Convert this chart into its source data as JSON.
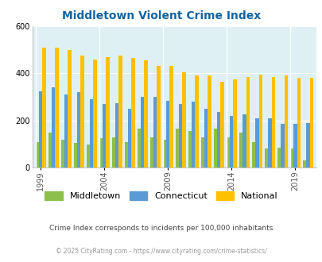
{
  "title": "Middletown Violent Crime Index",
  "years": [
    1999,
    2000,
    2001,
    2002,
    2003,
    2004,
    2005,
    2006,
    2007,
    2008,
    2009,
    2010,
    2011,
    2012,
    2013,
    2014,
    2015,
    2016,
    2017,
    2018,
    2019,
    2020
  ],
  "middletown": [
    110,
    150,
    120,
    105,
    100,
    125,
    130,
    110,
    165,
    130,
    120,
    165,
    155,
    130,
    165,
    130,
    150,
    110,
    80,
    85,
    80,
    30
  ],
  "connecticut": [
    325,
    340,
    310,
    320,
    290,
    270,
    275,
    250,
    300,
    300,
    285,
    270,
    280,
    250,
    235,
    220,
    225,
    210,
    210,
    185,
    185,
    190
  ],
  "national": [
    510,
    510,
    500,
    475,
    460,
    470,
    475,
    465,
    455,
    430,
    430,
    405,
    390,
    390,
    365,
    375,
    385,
    395,
    385,
    390,
    380,
    380
  ],
  "bar_width": 0.27,
  "colors": {
    "middletown": "#8dc04a",
    "connecticut": "#5b9bd5",
    "national": "#ffc000"
  },
  "bg_color": "#dff0f5",
  "ylim": [
    0,
    600
  ],
  "yticks": [
    0,
    200,
    400,
    600
  ],
  "xlabel_ticks": [
    1999,
    2004,
    2009,
    2014,
    2019
  ],
  "legend_labels": [
    "Middletown",
    "Connecticut",
    "National"
  ],
  "subtitle": "Crime Index corresponds to incidents per 100,000 inhabitants",
  "footer": "© 2025 CityRating.com - https://www.cityrating.com/crime-statistics/",
  "title_color": "#1464a0",
  "subtitle_color": "#444444",
  "footer_color": "#999999"
}
